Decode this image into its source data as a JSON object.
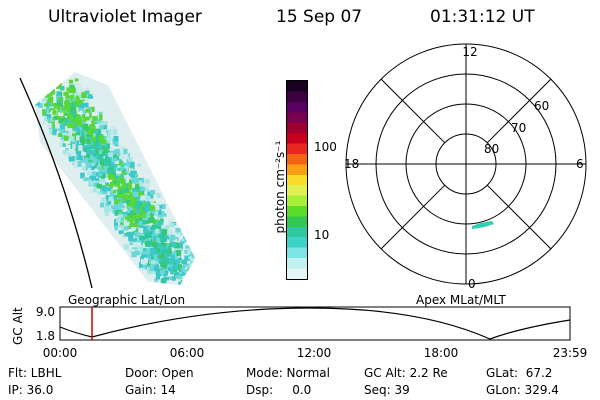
{
  "header": {
    "instrument": "Ultraviolet Imager",
    "date": "15 Sep 07",
    "time": "01:31:12 UT"
  },
  "geo_panel": {
    "label": "Geographic Lat/Lon"
  },
  "colorbar": {
    "unit_label": "photon cm⁻²s⁻¹",
    "ticks": [
      "100",
      "10"
    ],
    "colors_top_to_bottom": [
      "#1a0020",
      "#3a0040",
      "#5a0060",
      "#7a0050",
      "#a00030",
      "#c80020",
      "#e8281e",
      "#f56414",
      "#f8a014",
      "#f8dc28",
      "#e0f050",
      "#a8f038",
      "#58dc28",
      "#30c850",
      "#30c8a0",
      "#3cd2c8",
      "#7ce6e6",
      "#c0f0f0",
      "#e6f5f5"
    ]
  },
  "polar_panel": {
    "label": "Apex MLat/MLT",
    "mlt_labels": [
      "12",
      "18",
      "6",
      "0"
    ],
    "mlat_labels": [
      "60",
      "70",
      "80"
    ]
  },
  "altitude_strip": {
    "axis_label": "GC Alt",
    "y_ticks": [
      "9.0",
      "1.8"
    ],
    "x_ticks": [
      "00:00",
      "06:00",
      "12:00",
      "18:00",
      "23:59"
    ],
    "marker_color": "#cc0000"
  },
  "info": {
    "row1": {
      "flt": "Flt: LBHL",
      "door": "Door: Open",
      "mode": "Mode: Normal",
      "gcalt": "GC Alt: 2.2 Re",
      "glat": "GLat:  67.2"
    },
    "row2": {
      "ip": "IP: 36.0",
      "gain": "Gain: 14",
      "dsp": "Dsp:     0.0",
      "seq": "Seq: 39",
      "glon": "GLon: 329.4"
    }
  }
}
